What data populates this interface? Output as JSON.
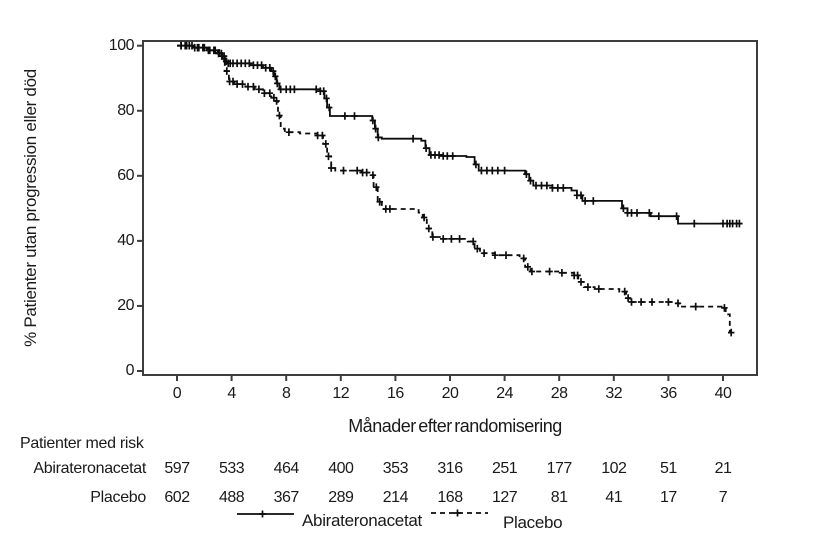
{
  "page": {
    "background": "#ffffff"
  },
  "chart_data": {
    "type": "line",
    "subtype": "kaplan-meier-step",
    "title": "",
    "xlabel": "Månader efter randomisering",
    "ylabel": "% Patienter utan progression eller död",
    "x_ticks": [
      0,
      4,
      8,
      12,
      16,
      20,
      24,
      28,
      32,
      36,
      40
    ],
    "y_ticks": [
      0,
      20,
      40,
      60,
      80,
      100
    ],
    "xlim": [
      0,
      42.5
    ],
    "ylim": [
      0,
      100
    ],
    "grid": false,
    "legend_position": "bottom",
    "series": [
      {
        "name": "Abirateronacetat",
        "line_style": "solid",
        "color": "#0d0d0d",
        "steps": [
          [
            0,
            100
          ],
          [
            1.2,
            99.4
          ],
          [
            2.2,
            98.6
          ],
          [
            3.0,
            97.8
          ],
          [
            3.3,
            96.8
          ],
          [
            3.5,
            95.2
          ],
          [
            3.7,
            94.6
          ],
          [
            5.4,
            94.0
          ],
          [
            6.3,
            93.2
          ],
          [
            6.9,
            92.2
          ],
          [
            7.1,
            90.6
          ],
          [
            7.3,
            88.4
          ],
          [
            7.5,
            86.6
          ],
          [
            10.5,
            86.0
          ],
          [
            10.8,
            83.8
          ],
          [
            11.0,
            81.0
          ],
          [
            11.2,
            78.4
          ],
          [
            14.3,
            77.0
          ],
          [
            14.5,
            74.5
          ],
          [
            14.7,
            71.8
          ],
          [
            15.0,
            71.4
          ],
          [
            17.9,
            70.8
          ],
          [
            18.2,
            68.5
          ],
          [
            18.5,
            66.4
          ],
          [
            19.5,
            66.1
          ],
          [
            21.2,
            65.8
          ],
          [
            21.8,
            63.5
          ],
          [
            22.1,
            61.6
          ],
          [
            25.5,
            60.5
          ],
          [
            25.8,
            58.5
          ],
          [
            26.1,
            57.0
          ],
          [
            27.5,
            56.3
          ],
          [
            28.9,
            55.5
          ],
          [
            29.3,
            54.0
          ],
          [
            29.7,
            52.3
          ],
          [
            32.6,
            50.0
          ],
          [
            33.0,
            48.6
          ],
          [
            34.7,
            47.6
          ],
          [
            36.7,
            45.3
          ],
          [
            41.4,
            45.3
          ]
        ],
        "censor_marks": [
          0.3,
          0.6,
          0.9,
          1.3,
          1.6,
          2.0,
          2.4,
          2.8,
          3.1,
          3.3,
          3.45,
          3.6,
          3.75,
          3.9,
          4.1,
          4.4,
          4.7,
          5.0,
          5.3,
          5.6,
          5.9,
          6.2,
          6.5,
          6.8,
          7.05,
          7.2,
          7.35,
          7.6,
          8.0,
          8.3,
          8.6,
          10.2,
          10.5,
          10.75,
          10.95,
          11.15,
          12.3,
          13.0,
          14.35,
          14.55,
          14.75,
          17.3,
          18.25,
          18.6,
          18.9,
          19.2,
          19.5,
          19.8,
          20.2,
          21.9,
          22.3,
          22.7,
          23.1,
          23.5,
          24.0,
          25.6,
          25.9,
          26.3,
          26.7,
          27.1,
          27.5,
          27.9,
          28.3,
          29.3,
          29.6,
          29.9,
          30.5,
          32.7,
          33.0,
          33.3,
          33.7,
          34.6,
          35.3,
          36.6,
          37.9,
          40.0,
          40.3,
          40.5,
          40.7,
          41.0,
          41.2
        ]
      },
      {
        "name": "Placebo",
        "line_style": "dashed",
        "color": "#0d0d0d",
        "steps": [
          [
            0,
            100
          ],
          [
            1.3,
            99.4
          ],
          [
            2.2,
            98.6
          ],
          [
            3.0,
            97.6
          ],
          [
            3.3,
            96.0
          ],
          [
            3.5,
            92.2
          ],
          [
            3.8,
            89.0
          ],
          [
            4.2,
            88.2
          ],
          [
            5.0,
            87.4
          ],
          [
            5.7,
            86.6
          ],
          [
            6.3,
            85.4
          ],
          [
            6.9,
            84.0
          ],
          [
            7.2,
            83.0
          ],
          [
            7.4,
            78.5
          ],
          [
            7.6,
            74.5
          ],
          [
            7.9,
            73.4
          ],
          [
            9.0,
            73.0
          ],
          [
            10.3,
            72.4
          ],
          [
            10.7,
            69.8
          ],
          [
            11.0,
            66.0
          ],
          [
            11.3,
            62.4
          ],
          [
            11.6,
            61.6
          ],
          [
            13.5,
            61.0
          ],
          [
            14.1,
            60.2
          ],
          [
            14.4,
            56.5
          ],
          [
            14.7,
            52.0
          ],
          [
            15.0,
            49.8
          ],
          [
            17.7,
            48.7
          ],
          [
            18.0,
            47.2
          ],
          [
            18.3,
            43.8
          ],
          [
            18.7,
            41.2
          ],
          [
            19.4,
            40.6
          ],
          [
            21.3,
            39.8
          ],
          [
            21.8,
            37.6
          ],
          [
            22.2,
            36.2
          ],
          [
            23.3,
            35.6
          ],
          [
            25.1,
            34.6
          ],
          [
            25.5,
            32.0
          ],
          [
            25.9,
            30.6
          ],
          [
            28.1,
            30.2
          ],
          [
            29.1,
            29.4
          ],
          [
            29.4,
            27.4
          ],
          [
            29.8,
            25.8
          ],
          [
            30.6,
            25.2
          ],
          [
            32.4,
            24.4
          ],
          [
            32.9,
            22.4
          ],
          [
            33.2,
            21.2
          ],
          [
            36.4,
            20.8
          ],
          [
            36.8,
            19.8
          ],
          [
            39.9,
            19.4
          ],
          [
            40.2,
            17.4
          ],
          [
            40.5,
            11.8
          ],
          [
            40.8,
            11.6
          ]
        ],
        "censor_marks": [
          0.3,
          0.7,
          1.1,
          1.5,
          1.9,
          2.3,
          2.7,
          3.05,
          3.25,
          3.45,
          3.65,
          3.85,
          4.1,
          4.4,
          4.8,
          5.2,
          5.6,
          6.0,
          6.4,
          6.8,
          7.1,
          7.3,
          7.5,
          8.2,
          10.3,
          10.65,
          10.9,
          11.1,
          11.3,
          12.2,
          13.2,
          13.6,
          13.9,
          14.35,
          14.6,
          14.85,
          15.3,
          15.6,
          18.1,
          18.45,
          18.75,
          19.5,
          20.1,
          20.7,
          21.7,
          22.0,
          22.5,
          23.3,
          24.1,
          25.4,
          25.7,
          26.0,
          27.3,
          28.2,
          29.1,
          29.35,
          29.6,
          30.1,
          30.9,
          32.8,
          33.05,
          33.3,
          34.0,
          34.8,
          36.0,
          36.7,
          38.0,
          40.1,
          40.6
        ]
      }
    ]
  },
  "risk_table": {
    "title": "Patienter med risk",
    "rows": [
      {
        "label": "Abirateronacetat",
        "counts": [
          597,
          533,
          464,
          400,
          353,
          316,
          251,
          177,
          102,
          51,
          21
        ]
      },
      {
        "label": "Placebo",
        "counts": [
          602,
          488,
          367,
          289,
          214,
          168,
          127,
          81,
          41,
          17,
          7
        ]
      }
    ]
  },
  "legend": {
    "items": [
      {
        "label": "Abirateronacetat",
        "style": "solid"
      },
      {
        "label": "Placebo",
        "style": "dashed"
      }
    ]
  },
  "colors": {
    "curve": "#0d0d0d",
    "axis": "#3d3d3d",
    "text": "#1a1a1a",
    "background": "#ffffff"
  }
}
